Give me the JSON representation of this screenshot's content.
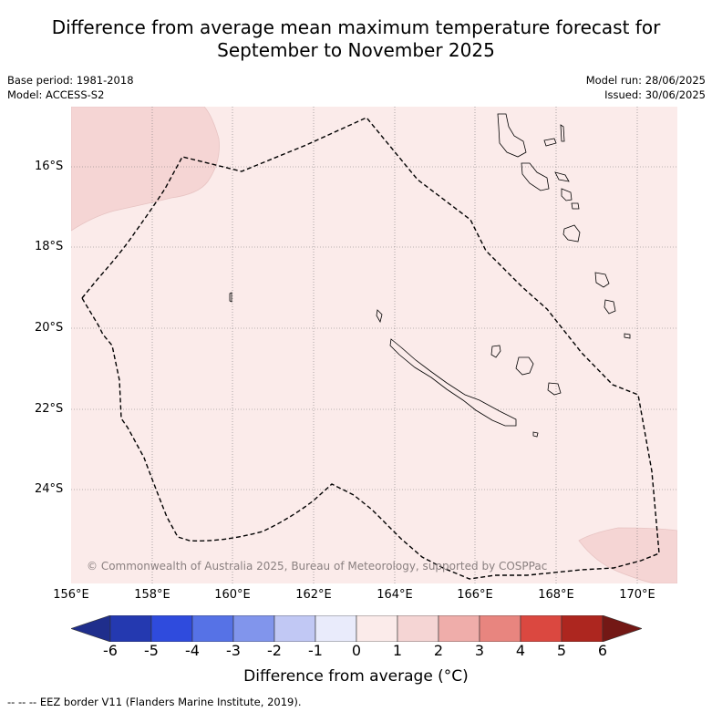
{
  "title_line1": "Difference from average mean maximum temperature forecast for",
  "title_line2": "September to November 2025",
  "meta": {
    "base_period": "Base period: 1981-2018",
    "model": "Model: ACCESS-S2",
    "model_run": "Model run: 28/06/2025",
    "issued": "Issued: 30/06/2025"
  },
  "map": {
    "lat_labels": [
      "16°S",
      "18°S",
      "20°S",
      "22°S",
      "24°S"
    ],
    "lon_labels": [
      "156°E",
      "158°E",
      "160°E",
      "162°E",
      "164°E",
      "166°E",
      "168°E",
      "170°E"
    ],
    "credit": "© Commonwealth of Australia 2025, Bureau of Meteorology, supported by COSPPac",
    "background_category": "0 to 1",
    "colors": {
      "anomaly_0_1": "#fbebea",
      "anomaly_1_2": "#f5d5d4"
    }
  },
  "colorbar": {
    "ticks": [
      "-6",
      "-5",
      "-4",
      "-3",
      "-2",
      "-1",
      "0",
      "1",
      "2",
      "3",
      "4",
      "5",
      "6"
    ],
    "colors": [
      "#1f2e8c",
      "#2439b0",
      "#2f4bdd",
      "#5672e6",
      "#8195ec",
      "#c1c8f4",
      "#e9ebfb",
      "#fbebea",
      "#f5d5d4",
      "#efadaa",
      "#e8857f",
      "#db4840",
      "#ad261f",
      "#731815"
    ],
    "label": "Difference from average (°C)"
  },
  "footnote": "--  --  -- EEZ border V11 (Flanders Marine Institute, 2019)."
}
